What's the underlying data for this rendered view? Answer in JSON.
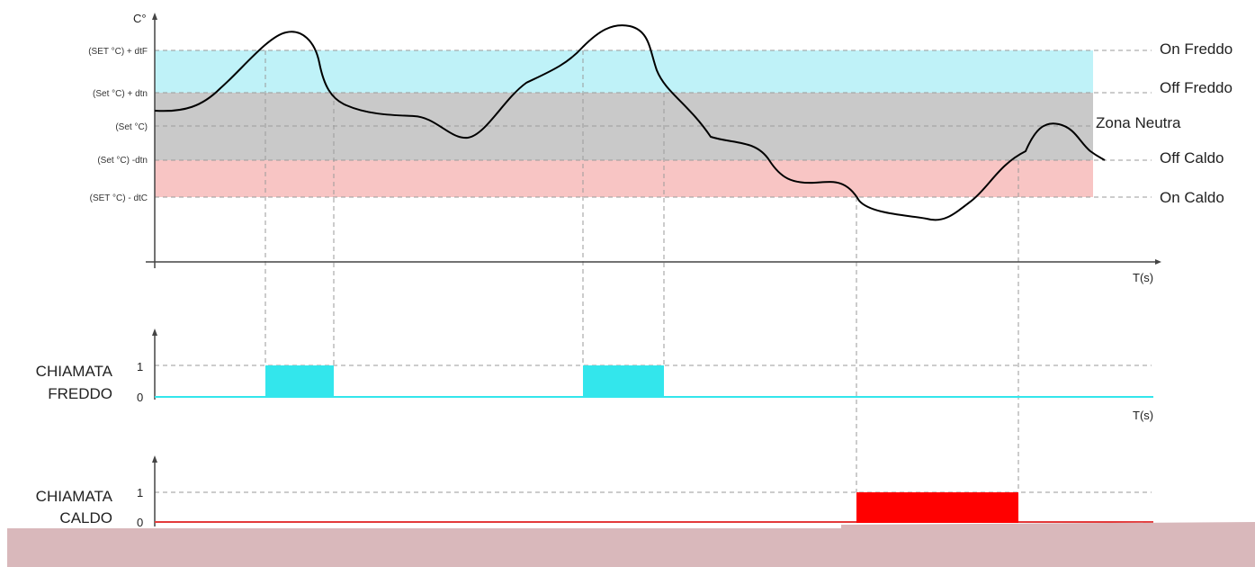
{
  "temperature_plot": {
    "y_unit": "C°",
    "x_unit": "T(s)",
    "levels": [
      {
        "key": "set_plus_dtf",
        "left_label": "(SET °C) + dtF",
        "right_label": "On Freddo"
      },
      {
        "key": "set_plus_dtn",
        "left_label": "(Set °C) + dtn",
        "right_label": "Off Freddo"
      },
      {
        "key": "set",
        "left_label": "(Set °C)",
        "right_label": "Zona Neutra"
      },
      {
        "key": "set_minus_dtn",
        "left_label": "(Set °C) -dtn",
        "right_label": "Off Caldo"
      },
      {
        "key": "set_minus_dtc",
        "left_label": "(SET °C) - dtC",
        "right_label": "On Caldo"
      }
    ],
    "colors": {
      "cold_band": "#bff2f8",
      "neutral_band": "#c9c9c9",
      "heat_band": "#f8c5c4",
      "curve": "#000000"
    }
  },
  "cold_call": {
    "label_line1": "CHIAMATA",
    "label_line2": "FREDDO",
    "tick_high": "1",
    "tick_low": "0",
    "x_unit": "T(s)",
    "color": "#33e6ec"
  },
  "heat_call": {
    "label_line1": "CHIAMATA",
    "label_line2": "CALDO",
    "tick_high": "1",
    "tick_low": "0",
    "color": "#ff0000"
  },
  "footer": {
    "color": "#d9b8bb"
  }
}
